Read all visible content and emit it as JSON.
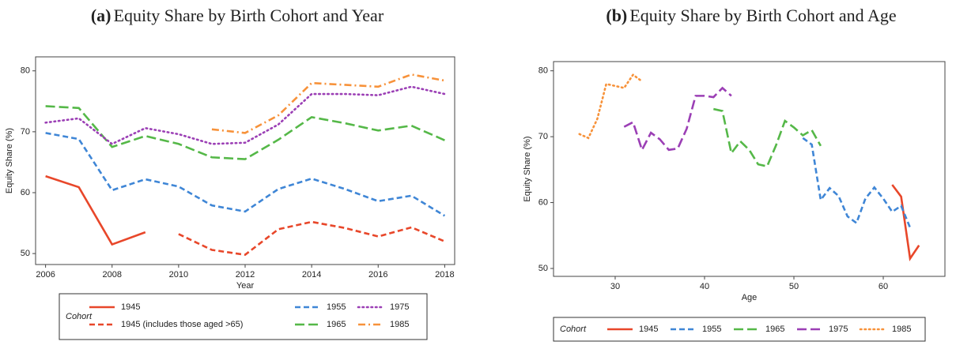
{
  "chart_data": [
    {
      "type": "line",
      "label": "(a)",
      "title": "Equity Share by Birth Cohort and Year",
      "x_label": "Year",
      "y_label": "Equity Share (%)",
      "legend_title": "Cohort",
      "legend_rows": 2,
      "x": [
        2006,
        2007,
        2008,
        2009,
        2010,
        2011,
        2012,
        2013,
        2014,
        2015,
        2016,
        2017,
        2018
      ],
      "xlim": [
        2005.7,
        2018.3
      ],
      "xticks": [
        2006,
        2008,
        2010,
        2012,
        2014,
        2016,
        2018
      ],
      "ylim": [
        48.2,
        82.3
      ],
      "yticks": [
        50,
        60,
        70,
        80
      ],
      "series": [
        {
          "name": "1945",
          "color": "#e8472a",
          "line_style": "solid",
          "values": [
            62.7,
            60.9,
            51.5,
            53.5,
            null,
            null,
            null,
            null,
            null,
            null,
            null,
            null,
            null
          ]
        },
        {
          "name": "1945 (includes those aged >65)",
          "color": "#e8472a",
          "line_style": "dashed",
          "values": [
            null,
            null,
            null,
            null,
            53.2,
            50.6,
            49.8,
            54.0,
            55.2,
            54.2,
            52.8,
            54.3,
            52.0
          ]
        },
        {
          "name": "1955",
          "color": "#3f86d6",
          "line_style": "dashed",
          "values": [
            69.8,
            68.8,
            60.4,
            62.2,
            61.0,
            57.9,
            56.9,
            60.6,
            62.3,
            60.6,
            58.6,
            59.5,
            56.2
          ]
        },
        {
          "name": "1965",
          "color": "#55b848",
          "line_style": "longdash",
          "values": [
            74.2,
            73.9,
            67.5,
            69.3,
            68.0,
            65.8,
            65.5,
            68.7,
            72.4,
            71.4,
            70.2,
            71.0,
            68.6
          ]
        },
        {
          "name": "1975",
          "color": "#9b3fb5",
          "line_style": "dotted",
          "values": [
            71.5,
            72.2,
            68.0,
            70.6,
            69.6,
            68.0,
            68.2,
            71.2,
            76.2,
            76.2,
            76.0,
            77.4,
            76.2
          ]
        },
        {
          "name": "1985",
          "color": "#f7923a",
          "line_style": "dashdot",
          "values": [
            null,
            null,
            null,
            null,
            null,
            70.4,
            69.8,
            72.7,
            78.0,
            77.7,
            77.4,
            79.4,
            78.4
          ]
        }
      ]
    },
    {
      "type": "line",
      "label": "(b)",
      "title": "Equity Share by Birth Cohort and Age",
      "x_label": "Age",
      "y_label": "Equity Share (%)",
      "legend_title": "Cohort",
      "legend_rows": 1,
      "xlim": [
        23.1,
        66.9
      ],
      "xticks": [
        30,
        40,
        50,
        60
      ],
      "ylim": [
        48.8,
        81.4
      ],
      "yticks": [
        50,
        60,
        70,
        80
      ],
      "series": [
        {
          "name": "1945",
          "color": "#e8472a",
          "line_style": "solid",
          "x": [
            61,
            62,
            63,
            64
          ],
          "values": [
            62.7,
            60.9,
            51.5,
            53.5
          ]
        },
        {
          "name": "1955",
          "color": "#3f86d6",
          "line_style": "dashed",
          "x": [
            51,
            52,
            53,
            54,
            55,
            56,
            57,
            58,
            59,
            60,
            61,
            62,
            63
          ],
          "values": [
            69.8,
            68.8,
            60.4,
            62.2,
            61.0,
            57.9,
            56.9,
            60.6,
            62.3,
            60.6,
            58.6,
            59.5,
            56.2
          ]
        },
        {
          "name": "1965",
          "color": "#55b848",
          "line_style": "longdash",
          "x": [
            41,
            42,
            43,
            44,
            45,
            46,
            47,
            48,
            49,
            50,
            51,
            52,
            53
          ],
          "values": [
            74.2,
            73.9,
            67.5,
            69.3,
            68.0,
            65.8,
            65.5,
            68.7,
            72.4,
            71.4,
            70.2,
            71.0,
            68.6
          ]
        },
        {
          "name": "1975",
          "color": "#9b3fb5",
          "line_style": "longdash",
          "x": [
            31,
            32,
            33,
            34,
            35,
            36,
            37,
            38,
            39,
            40,
            41,
            42,
            43
          ],
          "values": [
            71.5,
            72.2,
            68.0,
            70.6,
            69.6,
            68.0,
            68.2,
            71.2,
            76.2,
            76.2,
            76.0,
            77.4,
            76.2
          ]
        },
        {
          "name": "1985",
          "color": "#f7923a",
          "line_style": "dotted",
          "x": [
            26,
            27,
            28,
            29,
            30,
            31,
            32,
            33
          ],
          "values": [
            70.4,
            69.8,
            72.7,
            78.0,
            77.7,
            77.4,
            79.4,
            78.4
          ]
        }
      ]
    }
  ]
}
